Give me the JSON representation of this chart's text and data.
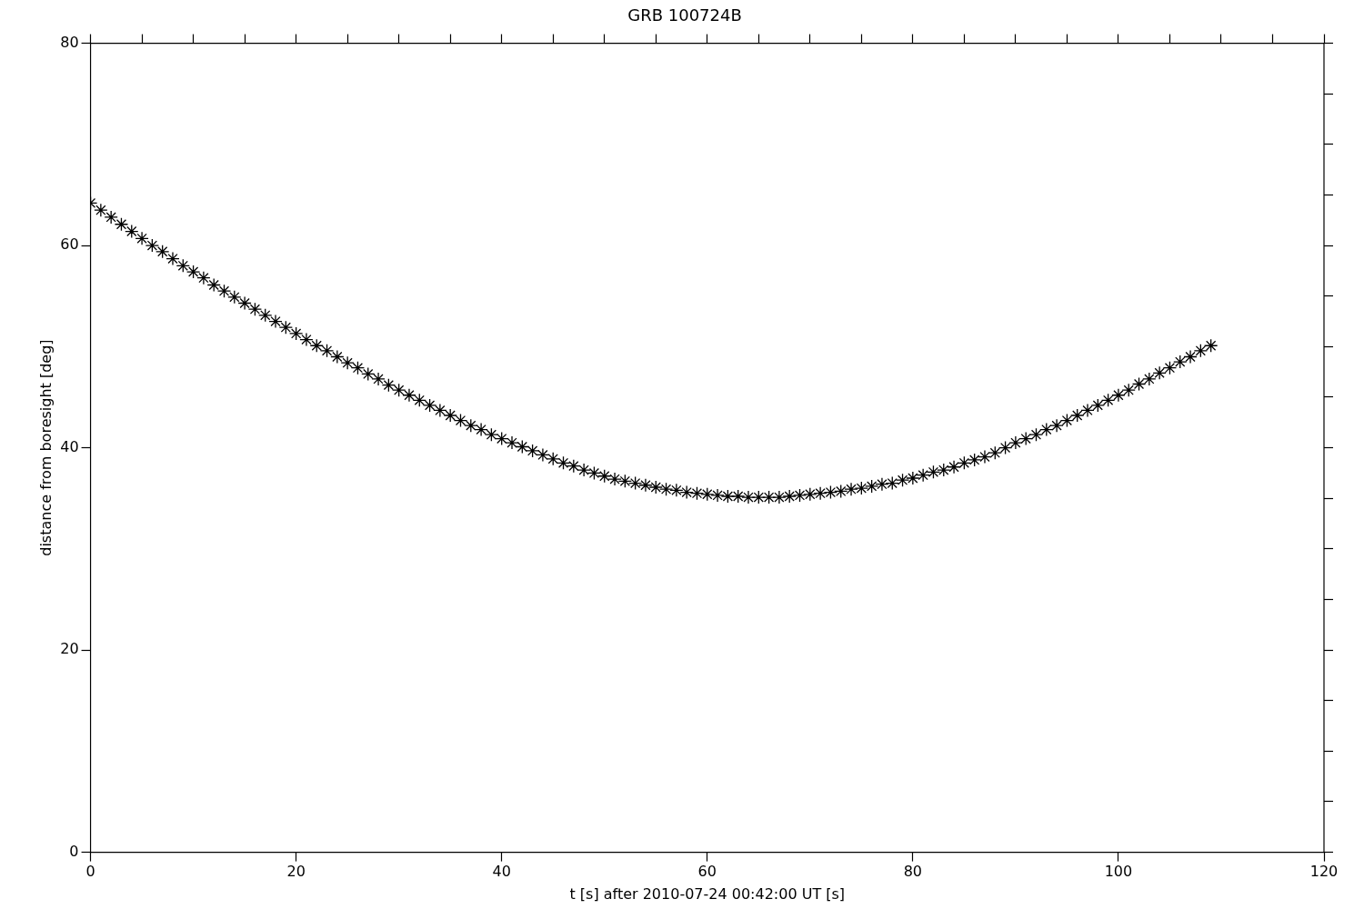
{
  "chart_data": {
    "type": "scatter",
    "title": "GRB 100724B",
    "xlabel": "t [s] after 2010-07-24 00:42:00 UT [s]",
    "ylabel": "distance from boresight [deg]",
    "x": [
      0,
      1,
      2,
      3,
      4,
      5,
      6,
      7,
      8,
      9,
      10,
      11,
      12,
      13,
      14,
      15,
      16,
      17,
      18,
      19,
      20,
      21,
      22,
      23,
      24,
      25,
      26,
      27,
      28,
      29,
      30,
      31,
      32,
      33,
      34,
      35,
      36,
      37,
      38,
      39,
      40,
      41,
      42,
      43,
      44,
      45,
      46,
      47,
      48,
      49,
      50,
      51,
      52,
      53,
      54,
      55,
      56,
      57,
      58,
      59,
      60,
      61,
      62,
      63,
      64,
      65,
      66,
      67,
      68,
      69,
      70,
      71,
      72,
      73,
      74,
      75,
      76,
      77,
      78,
      79,
      80,
      81,
      82,
      83,
      84,
      85,
      86,
      87,
      88,
      89,
      90,
      91,
      92,
      93,
      94,
      95,
      96,
      97,
      98,
      99,
      100,
      101,
      102,
      103,
      104,
      105,
      106,
      107,
      108,
      109
    ],
    "series": [
      {
        "color": "#000000",
        "values": [
          64.2,
          63.5,
          62.8,
          62.1,
          61.4,
          60.7,
          60.0,
          59.4,
          58.7,
          58.0,
          57.4,
          56.8,
          56.1,
          55.5,
          54.9,
          54.3,
          53.7,
          53.1,
          52.5,
          51.9,
          51.3,
          50.7,
          50.1,
          49.6,
          49.0,
          48.4,
          47.9,
          47.3,
          46.8,
          46.2,
          45.7,
          45.2,
          44.7,
          44.2,
          43.7,
          43.2,
          42.7,
          42.2,
          41.8,
          41.3,
          40.9,
          40.5,
          40.1,
          39.7,
          39.3,
          38.9,
          38.5,
          38.2,
          37.8,
          37.5,
          37.2,
          36.9,
          36.7,
          36.5,
          36.3,
          36.1,
          35.9,
          35.8,
          35.6,
          35.5,
          35.4,
          35.3,
          35.2,
          35.2,
          35.1,
          35.1,
          35.1,
          35.1,
          35.2,
          35.3,
          35.4,
          35.5,
          35.6,
          35.7,
          35.9,
          36.0,
          36.2,
          36.4,
          36.5,
          36.8,
          37.0,
          37.3,
          37.6,
          37.8,
          38.1,
          38.5,
          38.8,
          39.1,
          39.5,
          40.0,
          40.5,
          40.9,
          41.3,
          41.8,
          42.2,
          42.7,
          43.2,
          43.7,
          44.2,
          44.7,
          45.2,
          45.7,
          46.3,
          46.8,
          47.4,
          47.9,
          48.5,
          49.0,
          49.6,
          50.1
        ]
      }
    ],
    "xlim": [
      0,
      120
    ],
    "xticks": [
      0,
      {
        "value": 5,
        "label": null
      },
      {
        "value": 10,
        "label": null
      },
      {
        "value": 15,
        "label": null
      },
      20,
      {
        "value": 25,
        "label": null
      },
      {
        "value": 30,
        "label": null
      },
      {
        "value": 35,
        "label": null
      },
      40,
      {
        "value": 45,
        "label": null
      },
      {
        "value": 50,
        "label": null
      },
      {
        "value": 55,
        "label": null
      },
      60,
      {
        "value": 65,
        "label": null
      },
      {
        "value": 70,
        "label": null
      },
      {
        "value": 75,
        "label": null
      },
      80,
      {
        "value": 85,
        "label": null
      },
      {
        "value": 90,
        "label": null
      },
      {
        "value": 95,
        "label": null
      },
      100,
      {
        "value": 105,
        "label": null
      },
      {
        "value": 110,
        "label": null
      },
      {
        "value": 115,
        "label": null
      },
      120
    ],
    "ylim": [
      0,
      80
    ],
    "yticks": [
      0,
      {
        "value": 5,
        "label": null
      },
      {
        "value": 10,
        "label": null
      },
      {
        "value": 15,
        "label": null
      },
      20,
      {
        "value": 25,
        "label": null
      },
      {
        "value": 30,
        "label": null
      },
      {
        "value": 35,
        "label": null
      },
      40,
      {
        "value": 45,
        "label": null
      },
      {
        "value": 50,
        "label": null
      },
      {
        "value": 55,
        "label": null
      },
      60,
      {
        "value": 65,
        "label": null
      },
      {
        "value": 70,
        "label": null
      },
      {
        "value": 75,
        "label": null
      },
      80
    ],
    "marker": "cross"
  }
}
